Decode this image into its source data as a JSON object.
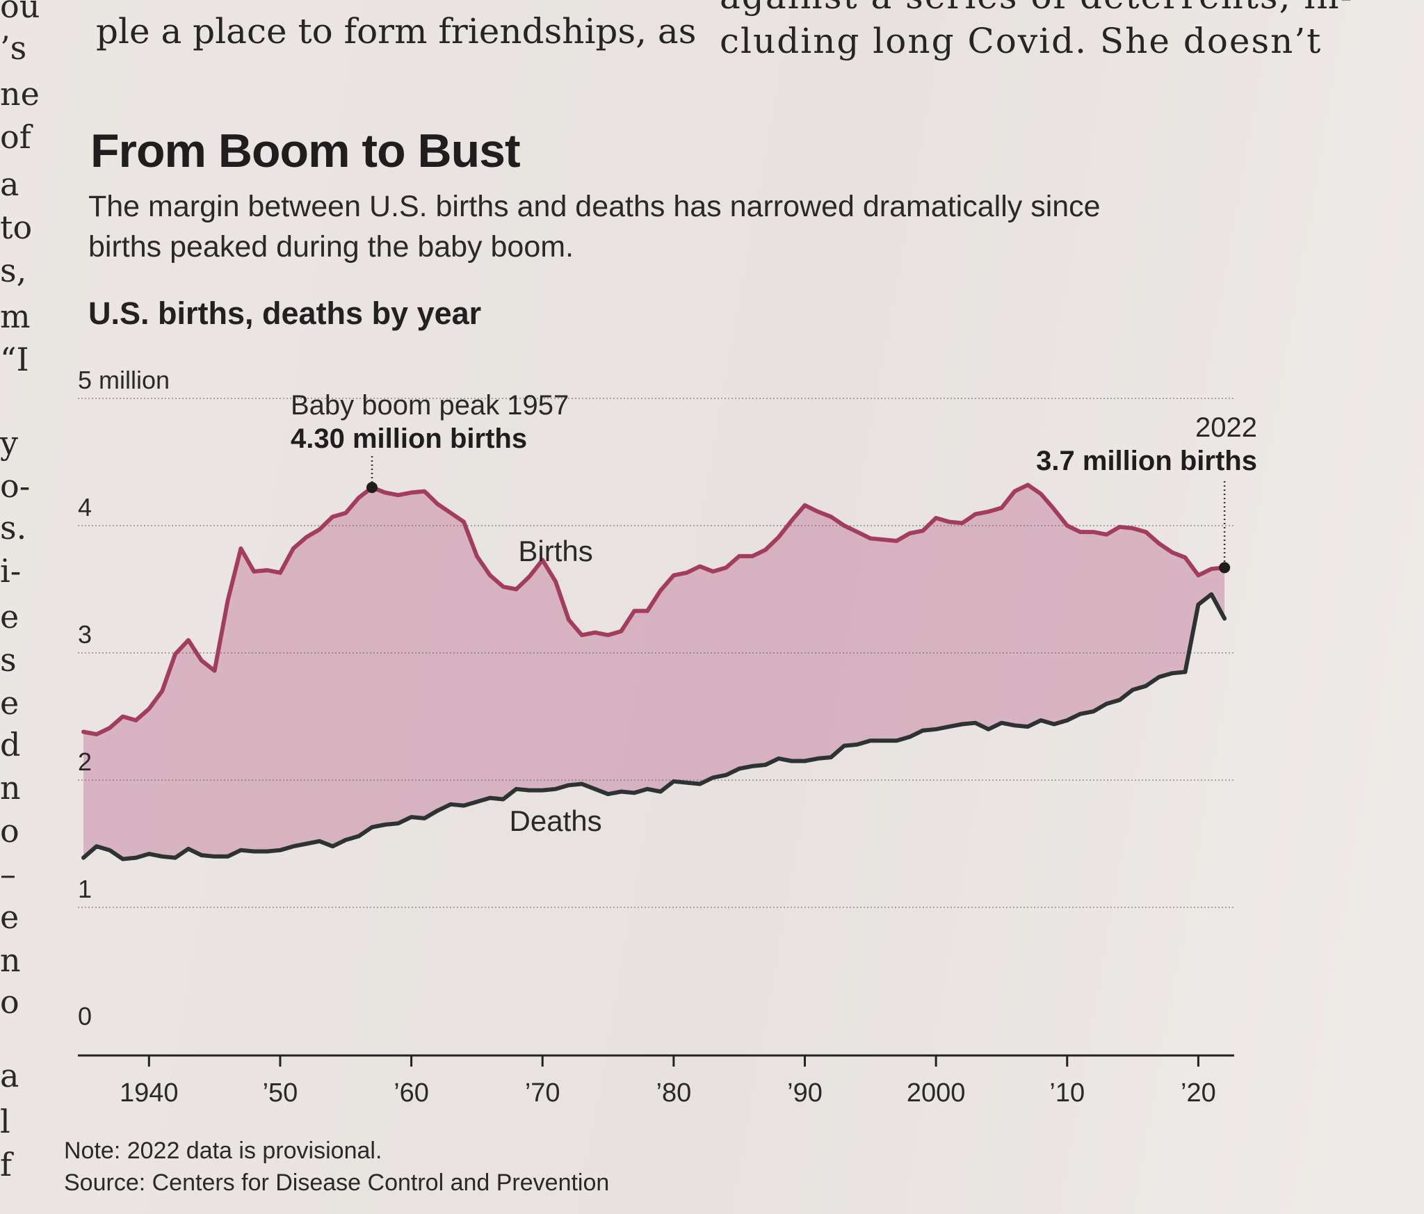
{
  "article": {
    "left_line": "ple a place to form friendships, as",
    "right_line_top": "against a series of deterrents, in-",
    "right_line": "cluding long Covid. She doesn’t",
    "left_fragments": [
      "ou",
      "’s",
      "ne",
      "of",
      "a",
      "to",
      "s,",
      "m",
      "“I",
      "y",
      "o-",
      "s.",
      "i-",
      "e",
      "s",
      "e",
      "d",
      "n",
      "o",
      "–",
      "e",
      "n",
      "o",
      "a",
      "l",
      "f"
    ]
  },
  "chart": {
    "title": "From Boom to Bust",
    "subtitle": "The margin between U.S. births and deaths has narrowed dramatically since births peaked during the baby boom.",
    "heading": "U.S. births, deaths by year",
    "note": "Note: 2022 data is provisional.",
    "source": "Source: Centers for Disease Control and Prevention"
  },
  "chart_data": {
    "type": "area",
    "title": "U.S. births, deaths by year",
    "xlim": [
      1935,
      2023
    ],
    "ylim": [
      0,
      5
    ],
    "y_ticks": [
      {
        "value": 5,
        "label": "5 million"
      },
      {
        "value": 4,
        "label": "4"
      },
      {
        "value": 3,
        "label": "3"
      },
      {
        "value": 2,
        "label": "2"
      },
      {
        "value": 1,
        "label": "1"
      },
      {
        "value": 0,
        "label": "0"
      }
    ],
    "x_ticks": [
      {
        "value": 1940,
        "label": "1940"
      },
      {
        "value": 1950,
        "label": "’50"
      },
      {
        "value": 1960,
        "label": "’60"
      },
      {
        "value": 1970,
        "label": "’70"
      },
      {
        "value": 1980,
        "label": "’80"
      },
      {
        "value": 1990,
        "label": "’90"
      },
      {
        "value": 2000,
        "label": "2000"
      },
      {
        "value": 2010,
        "label": "’10"
      },
      {
        "value": 2020,
        "label": "’20"
      }
    ],
    "grid": true,
    "series": [
      {
        "name": "Births",
        "color": "#a33d5f",
        "fill": "#c98aa5",
        "points": [
          [
            1935,
            2.38
          ],
          [
            1936,
            2.36
          ],
          [
            1937,
            2.41
          ],
          [
            1938,
            2.5
          ],
          [
            1939,
            2.47
          ],
          [
            1940,
            2.56
          ],
          [
            1941,
            2.7
          ],
          [
            1942,
            2.99
          ],
          [
            1943,
            3.1
          ],
          [
            1944,
            2.94
          ],
          [
            1945,
            2.86
          ],
          [
            1946,
            3.41
          ],
          [
            1947,
            3.82
          ],
          [
            1948,
            3.64
          ],
          [
            1949,
            3.65
          ],
          [
            1950,
            3.63
          ],
          [
            1951,
            3.82
          ],
          [
            1952,
            3.91
          ],
          [
            1953,
            3.97
          ],
          [
            1954,
            4.07
          ],
          [
            1955,
            4.1
          ],
          [
            1956,
            4.22
          ],
          [
            1957,
            4.3
          ],
          [
            1958,
            4.26
          ],
          [
            1959,
            4.24
          ],
          [
            1960,
            4.26
          ],
          [
            1961,
            4.27
          ],
          [
            1962,
            4.17
          ],
          [
            1963,
            4.1
          ],
          [
            1964,
            4.03
          ],
          [
            1965,
            3.76
          ],
          [
            1966,
            3.61
          ],
          [
            1967,
            3.52
          ],
          [
            1968,
            3.5
          ],
          [
            1969,
            3.6
          ],
          [
            1970,
            3.73
          ],
          [
            1971,
            3.56
          ],
          [
            1972,
            3.26
          ],
          [
            1973,
            3.14
          ],
          [
            1974,
            3.16
          ],
          [
            1975,
            3.14
          ],
          [
            1976,
            3.17
          ],
          [
            1977,
            3.33
          ],
          [
            1978,
            3.33
          ],
          [
            1979,
            3.49
          ],
          [
            1980,
            3.61
          ],
          [
            1981,
            3.63
          ],
          [
            1982,
            3.68
          ],
          [
            1983,
            3.64
          ],
          [
            1984,
            3.67
          ],
          [
            1985,
            3.76
          ],
          [
            1986,
            3.76
          ],
          [
            1987,
            3.81
          ],
          [
            1988,
            3.91
          ],
          [
            1989,
            4.04
          ],
          [
            1990,
            4.16
          ],
          [
            1991,
            4.11
          ],
          [
            1992,
            4.07
          ],
          [
            1993,
            4.0
          ],
          [
            1994,
            3.95
          ],
          [
            1995,
            3.9
          ],
          [
            1996,
            3.89
          ],
          [
            1997,
            3.88
          ],
          [
            1998,
            3.94
          ],
          [
            1999,
            3.96
          ],
          [
            2000,
            4.06
          ],
          [
            2001,
            4.03
          ],
          [
            2002,
            4.02
          ],
          [
            2003,
            4.09
          ],
          [
            2004,
            4.11
          ],
          [
            2005,
            4.14
          ],
          [
            2006,
            4.27
          ],
          [
            2007,
            4.32
          ],
          [
            2008,
            4.25
          ],
          [
            2009,
            4.13
          ],
          [
            2010,
            4.0
          ],
          [
            2011,
            3.95
          ],
          [
            2012,
            3.95
          ],
          [
            2013,
            3.93
          ],
          [
            2014,
            3.99
          ],
          [
            2015,
            3.98
          ],
          [
            2016,
            3.95
          ],
          [
            2017,
            3.86
          ],
          [
            2018,
            3.79
          ],
          [
            2019,
            3.75
          ],
          [
            2020,
            3.61
          ],
          [
            2021,
            3.66
          ],
          [
            2022,
            3.67
          ]
        ]
      },
      {
        "name": "Deaths",
        "color": "#2d3332",
        "points": [
          [
            1935,
            1.39
          ],
          [
            1936,
            1.48
          ],
          [
            1937,
            1.45
          ],
          [
            1938,
            1.38
          ],
          [
            1939,
            1.39
          ],
          [
            1940,
            1.42
          ],
          [
            1941,
            1.4
          ],
          [
            1942,
            1.39
          ],
          [
            1943,
            1.46
          ],
          [
            1944,
            1.41
          ],
          [
            1945,
            1.4
          ],
          [
            1946,
            1.4
          ],
          [
            1947,
            1.45
          ],
          [
            1948,
            1.44
          ],
          [
            1949,
            1.44
          ],
          [
            1950,
            1.45
          ],
          [
            1951,
            1.48
          ],
          [
            1952,
            1.5
          ],
          [
            1953,
            1.52
          ],
          [
            1954,
            1.48
          ],
          [
            1955,
            1.53
          ],
          [
            1956,
            1.56
          ],
          [
            1957,
            1.63
          ],
          [
            1958,
            1.65
          ],
          [
            1959,
            1.66
          ],
          [
            1960,
            1.71
          ],
          [
            1961,
            1.7
          ],
          [
            1962,
            1.76
          ],
          [
            1963,
            1.81
          ],
          [
            1964,
            1.8
          ],
          [
            1965,
            1.83
          ],
          [
            1966,
            1.86
          ],
          [
            1967,
            1.85
          ],
          [
            1968,
            1.93
          ],
          [
            1969,
            1.92
          ],
          [
            1970,
            1.92
          ],
          [
            1971,
            1.93
          ],
          [
            1972,
            1.96
          ],
          [
            1973,
            1.97
          ],
          [
            1974,
            1.93
          ],
          [
            1975,
            1.89
          ],
          [
            1976,
            1.91
          ],
          [
            1977,
            1.9
          ],
          [
            1978,
            1.93
          ],
          [
            1979,
            1.91
          ],
          [
            1980,
            1.99
          ],
          [
            1981,
            1.98
          ],
          [
            1982,
            1.97
          ],
          [
            1983,
            2.02
          ],
          [
            1984,
            2.04
          ],
          [
            1985,
            2.09
          ],
          [
            1986,
            2.11
          ],
          [
            1987,
            2.12
          ],
          [
            1988,
            2.17
          ],
          [
            1989,
            2.15
          ],
          [
            1990,
            2.15
          ],
          [
            1991,
            2.17
          ],
          [
            1992,
            2.18
          ],
          [
            1993,
            2.27
          ],
          [
            1994,
            2.28
          ],
          [
            1995,
            2.31
          ],
          [
            1996,
            2.31
          ],
          [
            1997,
            2.31
          ],
          [
            1998,
            2.34
          ],
          [
            1999,
            2.39
          ],
          [
            2000,
            2.4
          ],
          [
            2001,
            2.42
          ],
          [
            2002,
            2.44
          ],
          [
            2003,
            2.45
          ],
          [
            2004,
            2.4
          ],
          [
            2005,
            2.45
          ],
          [
            2006,
            2.43
          ],
          [
            2007,
            2.42
          ],
          [
            2008,
            2.47
          ],
          [
            2009,
            2.44
          ],
          [
            2010,
            2.47
          ],
          [
            2011,
            2.52
          ],
          [
            2012,
            2.54
          ],
          [
            2013,
            2.6
          ],
          [
            2014,
            2.63
          ],
          [
            2015,
            2.71
          ],
          [
            2016,
            2.74
          ],
          [
            2017,
            2.81
          ],
          [
            2018,
            2.84
          ],
          [
            2019,
            2.85
          ],
          [
            2020,
            3.38
          ],
          [
            2021,
            3.46
          ],
          [
            2022,
            3.27
          ]
        ]
      }
    ],
    "annotations": [
      {
        "name": "peak",
        "x": 1957,
        "y": 4.3,
        "line1": "Baby boom peak 1957",
        "line2": "4.30 million births"
      },
      {
        "name": "latest",
        "x": 2022,
        "y": 3.67,
        "line1": "2022",
        "line2": "3.7 million births"
      }
    ],
    "series_labels": [
      {
        "text": "Births",
        "x": 1971,
        "y": 3.72
      },
      {
        "text": "Deaths",
        "x": 1971,
        "y": 1.6
      }
    ]
  }
}
